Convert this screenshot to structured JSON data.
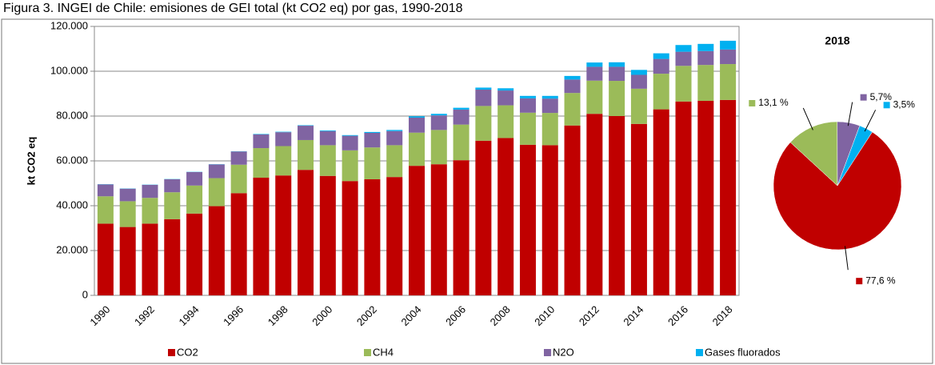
{
  "chart_data": [
    {
      "type": "stacked_bar",
      "title": "Figura 3. INGEI de Chile: emisiones de GEI total (kt CO2 eq) por gas, 1990-2018",
      "y_label": "kt CO2 eq",
      "categories": [
        "1990",
        null,
        "1992",
        null,
        "1994",
        null,
        "1996",
        null,
        "1998",
        null,
        "2000",
        null,
        "2002",
        null,
        "2004",
        null,
        "2006",
        null,
        "2008",
        null,
        "2010",
        null,
        "2012",
        null,
        "2014",
        null,
        "2016",
        null,
        "2018"
      ],
      "series": [
        {
          "name": "CO2",
          "color": "#c00000",
          "values": [
            32000,
            30500,
            32000,
            34000,
            36500,
            39800,
            45600,
            52500,
            53500,
            56000,
            53300,
            51000,
            51800,
            52800,
            57800,
            58500,
            60300,
            69000,
            70200,
            67200,
            67000,
            75800,
            81000,
            80000,
            76500,
            83000,
            86500,
            86800,
            87200
          ]
        },
        {
          "name": "CH4",
          "color": "#9bbb59",
          "values": [
            12200,
            11500,
            11500,
            12000,
            12500,
            12500,
            12700,
            13200,
            13100,
            13300,
            13700,
            13700,
            14200,
            14200,
            14800,
            15300,
            15900,
            15500,
            14600,
            14300,
            14400,
            14500,
            14800,
            15700,
            15700,
            15900,
            15900,
            16000,
            16000
          ]
        },
        {
          "name": "N2O",
          "color": "#8064a2",
          "values": [
            5300,
            5600,
            5800,
            5800,
            6000,
            6100,
            5900,
            6100,
            6200,
            6400,
            6300,
            6500,
            6500,
            6300,
            6700,
            6500,
            6700,
            7300,
            6600,
            6400,
            6400,
            6000,
            6200,
            6300,
            6200,
            6600,
            6300,
            6200,
            6500
          ]
        },
        {
          "name": "Gases fluorados",
          "color": "#00b0f0",
          "values": [
            100,
            100,
            100,
            100,
            100,
            100,
            100,
            200,
            200,
            200,
            300,
            300,
            400,
            500,
            600,
            700,
            800,
            900,
            1000,
            1100,
            1200,
            1600,
            1900,
            2000,
            2200,
            2500,
            3000,
            3200,
            3900
          ]
        }
      ],
      "ylim": [
        0,
        120000
      ],
      "yticks": [
        0,
        {
          "value": 20000,
          "label": "20.000"
        },
        {
          "value": 40000,
          "label": "40.000"
        },
        {
          "value": 60000,
          "label": "60.000"
        },
        {
          "value": 80000,
          "label": "80.000"
        },
        {
          "value": 100000,
          "label": "100.000"
        },
        {
          "value": 120000,
          "label": "120.000"
        }
      ],
      "legend": "bottom"
    },
    {
      "type": "pie",
      "title": "2018",
      "categories": [
        "CO2",
        "CH4",
        "N2O",
        "Gases fluorados"
      ],
      "colors": [
        "#c00000",
        "#9bbb59",
        "#8064a2",
        "#00b0f0"
      ],
      "values": [
        77.6,
        13.1,
        5.7,
        3.5
      ],
      "value_labels": [
        "77,6 %",
        "13,1 %",
        "5,7%",
        "3,5%"
      ]
    }
  ]
}
